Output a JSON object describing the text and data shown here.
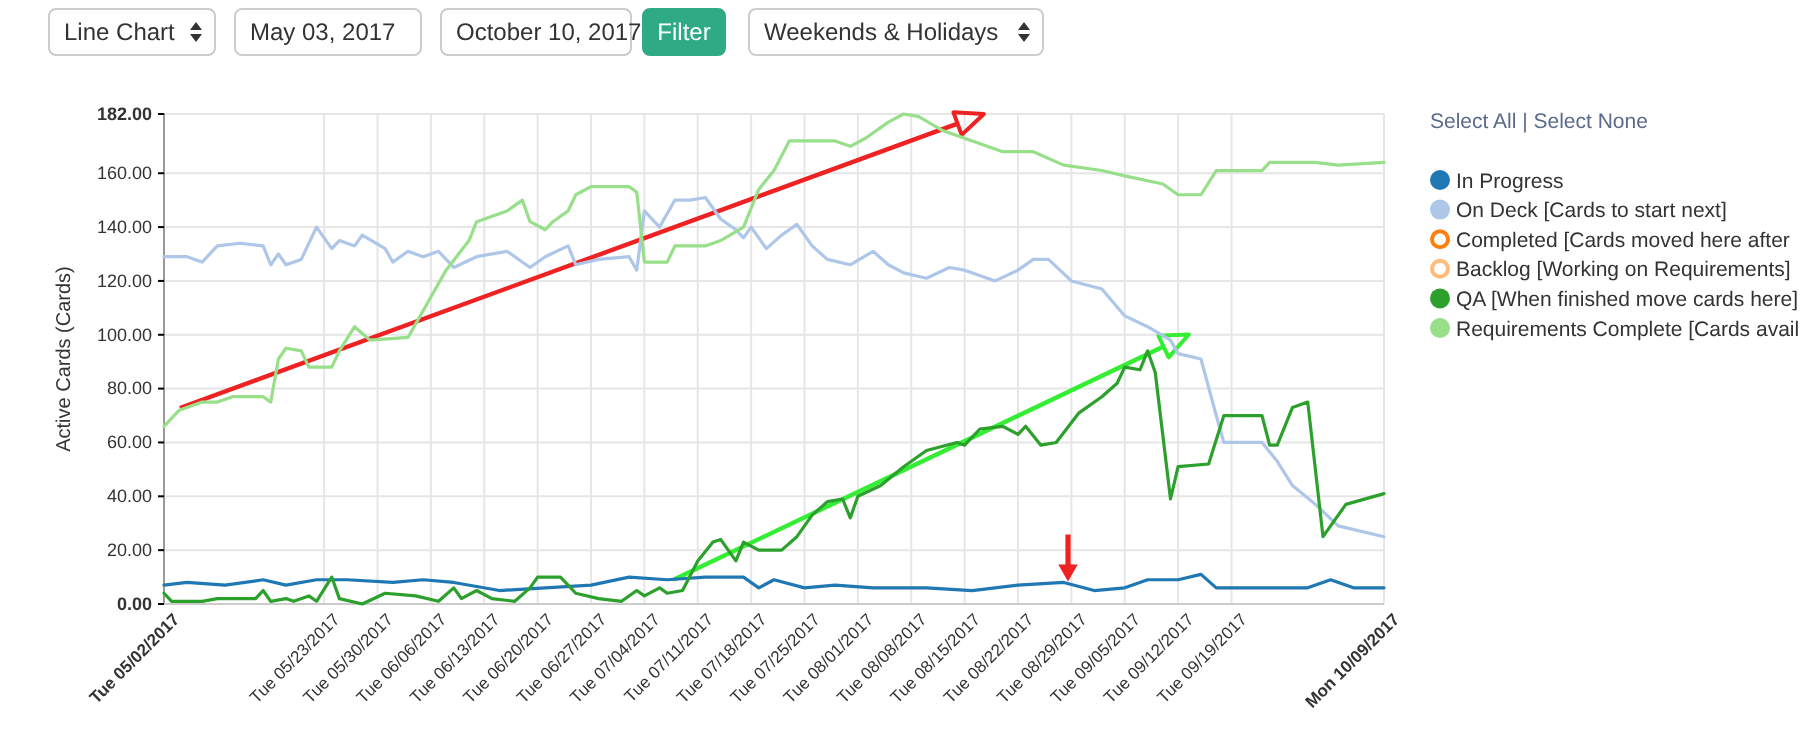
{
  "chart_data": {
    "type": "line",
    "ylabel": "Active Cards (Cards)",
    "annotations": [
      "Line Chart",
      "May 03, 2017",
      "October 10, 2017",
      "Filter",
      "Weekends & Holidays",
      "Select All | Select None"
    ],
    "xlim": [
      "2017-05-02",
      "2017-10-09"
    ],
    "xticks": [
      {
        "value": "2017-05-02",
        "label": "Tue 05/02/2017"
      },
      {
        "value": "2017-05-23",
        "label": "Tue 05/23/2017"
      },
      {
        "value": "2017-05-30",
        "label": "Tue 05/30/2017"
      },
      {
        "value": "2017-06-06",
        "label": "Tue 06/06/2017"
      },
      {
        "value": "2017-06-13",
        "label": "Tue 06/13/2017"
      },
      {
        "value": "2017-06-20",
        "label": "Tue 06/20/2017"
      },
      {
        "value": "2017-06-27",
        "label": "Tue 06/27/2017"
      },
      {
        "value": "2017-07-04",
        "label": "Tue 07/04/2017"
      },
      {
        "value": "2017-07-11",
        "label": "Tue 07/11/2017"
      },
      {
        "value": "2017-07-18",
        "label": "Tue 07/18/2017"
      },
      {
        "value": "2017-07-25",
        "label": "Tue 07/25/2017"
      },
      {
        "value": "2017-08-01",
        "label": "Tue 08/01/2017"
      },
      {
        "value": "2017-08-08",
        "label": "Tue 08/08/2017"
      },
      {
        "value": "2017-08-15",
        "label": "Tue 08/15/2017"
      },
      {
        "value": "2017-08-22",
        "label": "Tue 08/22/2017"
      },
      {
        "value": "2017-08-29",
        "label": "Tue 08/29/2017"
      },
      {
        "value": "2017-09-05",
        "label": "Tue 09/05/2017"
      },
      {
        "value": "2017-09-12",
        "label": "Tue 09/12/2017"
      },
      {
        "value": "2017-09-19",
        "label": "Tue 09/19/2017"
      },
      {
        "value": "2017-10-09",
        "label": "Mon 10/09/2017"
      }
    ],
    "ylim": [
      0,
      182
    ],
    "yticks": [
      {
        "value": 0,
        "label": "0.00"
      },
      {
        "value": 20,
        "label": "20.00"
      },
      {
        "value": 40,
        "label": "40.00"
      },
      {
        "value": 60,
        "label": "60.00"
      },
      {
        "value": 80,
        "label": "80.00"
      },
      {
        "value": 100,
        "label": "100.00"
      },
      {
        "value": 120,
        "label": "120.00"
      },
      {
        "value": 140,
        "label": "140.00"
      },
      {
        "value": 160,
        "label": "160.00"
      },
      {
        "value": 182,
        "label": "182.00"
      }
    ],
    "grid": true,
    "legend": "right",
    "line_style": "solid",
    "marker": "none",
    "series": [
      {
        "name": "In Progress",
        "color": "#1f77b4",
        "x": [
          "2017-05-02",
          "2017-05-05",
          "2017-05-10",
          "2017-05-15",
          "2017-05-18",
          "2017-05-22",
          "2017-05-26",
          "2017-06-01",
          "2017-06-05",
          "2017-06-09",
          "2017-06-15",
          "2017-06-21",
          "2017-06-27",
          "2017-07-02",
          "2017-07-07",
          "2017-07-12",
          "2017-07-17",
          "2017-07-19",
          "2017-07-21",
          "2017-07-25",
          "2017-07-29",
          "2017-08-03",
          "2017-08-10",
          "2017-08-16",
          "2017-08-22",
          "2017-08-28",
          "2017-09-01",
          "2017-09-05",
          "2017-09-08",
          "2017-09-12",
          "2017-09-15",
          "2017-09-17",
          "2017-09-23",
          "2017-09-29",
          "2017-10-02",
          "2017-10-05",
          "2017-10-09"
        ],
        "values": [
          7,
          8,
          7,
          9,
          7,
          9,
          9,
          8,
          9,
          8,
          5,
          6,
          7,
          10,
          9,
          10,
          10,
          6,
          9,
          6,
          7,
          6,
          6,
          5,
          7,
          8,
          5,
          6,
          9,
          9,
          11,
          6,
          6,
          6,
          9,
          6,
          6
        ]
      },
      {
        "name": "On Deck [Cards to start next]",
        "color": "#aec7e8",
        "x": [
          "2017-05-02",
          "2017-05-05",
          "2017-05-07",
          "2017-05-09",
          "2017-05-12",
          "2017-05-15",
          "2017-05-16",
          "2017-05-17",
          "2017-05-18",
          "2017-05-20",
          "2017-05-22",
          "2017-05-24",
          "2017-05-25",
          "2017-05-27",
          "2017-05-28",
          "2017-05-31",
          "2017-06-01",
          "2017-06-03",
          "2017-06-05",
          "2017-06-07",
          "2017-06-09",
          "2017-06-12",
          "2017-06-16",
          "2017-06-19",
          "2017-06-21",
          "2017-06-24",
          "2017-06-25",
          "2017-06-28",
          "2017-07-02",
          "2017-07-03",
          "2017-07-04",
          "2017-07-06",
          "2017-07-08",
          "2017-07-10",
          "2017-07-12",
          "2017-07-14",
          "2017-07-16",
          "2017-07-17",
          "2017-07-18",
          "2017-07-20",
          "2017-07-22",
          "2017-07-24",
          "2017-07-26",
          "2017-07-28",
          "2017-07-31",
          "2017-08-03",
          "2017-08-05",
          "2017-08-07",
          "2017-08-10",
          "2017-08-13",
          "2017-08-15",
          "2017-08-19",
          "2017-08-22",
          "2017-08-24",
          "2017-08-26",
          "2017-08-29",
          "2017-09-02",
          "2017-09-05",
          "2017-09-08",
          "2017-09-11",
          "2017-09-12",
          "2017-09-15",
          "2017-09-17",
          "2017-09-18",
          "2017-09-23",
          "2017-09-25",
          "2017-09-27",
          "2017-09-30",
          "2017-10-03",
          "2017-10-09"
        ],
        "values": [
          129,
          129,
          127,
          133,
          134,
          133,
          126,
          130,
          126,
          128,
          140,
          132,
          135,
          133,
          137,
          132,
          127,
          131,
          129,
          131,
          125,
          129,
          131,
          125,
          129,
          133,
          126,
          128,
          129,
          124,
          146,
          140,
          150,
          150,
          151,
          143,
          139,
          136,
          140,
          132,
          137,
          141,
          133,
          128,
          126,
          131,
          126,
          123,
          121,
          125,
          124,
          120,
          124,
          128,
          128,
          120,
          117,
          107,
          103,
          98,
          93,
          91,
          70,
          60,
          60,
          53,
          44,
          37,
          29,
          25
        ]
      },
      {
        "name": "Completed [Cards moved here after",
        "color": "#ff7f0e"
      },
      {
        "name": "Backlog [Working on Requirements]",
        "color": "#ffbb78"
      },
      {
        "name": "QA [When finished move cards here]",
        "color": "#2ca02c",
        "x": [
          "2017-05-02",
          "2017-05-03",
          "2017-05-07",
          "2017-05-09",
          "2017-05-14",
          "2017-05-15",
          "2017-05-16",
          "2017-05-18",
          "2017-05-19",
          "2017-05-21",
          "2017-05-22",
          "2017-05-24",
          "2017-05-25",
          "2017-05-28",
          "2017-05-31",
          "2017-06-04",
          "2017-06-07",
          "2017-06-09",
          "2017-06-10",
          "2017-06-12",
          "2017-06-14",
          "2017-06-17",
          "2017-06-19",
          "2017-06-20",
          "2017-06-23",
          "2017-06-25",
          "2017-06-28",
          "2017-07-01",
          "2017-07-03",
          "2017-07-04",
          "2017-07-06",
          "2017-07-07",
          "2017-07-09",
          "2017-07-11",
          "2017-07-13",
          "2017-07-14",
          "2017-07-16",
          "2017-07-17",
          "2017-07-19",
          "2017-07-22",
          "2017-07-24",
          "2017-07-26",
          "2017-07-28",
          "2017-07-30",
          "2017-07-31",
          "2017-08-01",
          "2017-08-04",
          "2017-08-07",
          "2017-08-10",
          "2017-08-14",
          "2017-08-15",
          "2017-08-17",
          "2017-08-20",
          "2017-08-22",
          "2017-08-23",
          "2017-08-25",
          "2017-08-27",
          "2017-08-30",
          "2017-09-02",
          "2017-09-04",
          "2017-09-05",
          "2017-09-07",
          "2017-09-08",
          "2017-09-09",
          "2017-09-11",
          "2017-09-12",
          "2017-09-16",
          "2017-09-18",
          "2017-09-23",
          "2017-09-24",
          "2017-09-25",
          "2017-09-27",
          "2017-09-29",
          "2017-10-01",
          "2017-10-04",
          "2017-10-09"
        ],
        "values": [
          4,
          1,
          1,
          2,
          2,
          5,
          1,
          2,
          1,
          3,
          1,
          10,
          2,
          0,
          4,
          3,
          1,
          6,
          2,
          5,
          2,
          1,
          6,
          10,
          10,
          4,
          2,
          1,
          5,
          3,
          6,
          4,
          5,
          16,
          23,
          24,
          16,
          23,
          20,
          20,
          25,
          33,
          38,
          39,
          32,
          40,
          44,
          51,
          57,
          60,
          59,
          65,
          66,
          63,
          66,
          59,
          60,
          71,
          77,
          82,
          88,
          87,
          94,
          86,
          39,
          51,
          52,
          70,
          70,
          59,
          59,
          73,
          75,
          25,
          37,
          41
        ]
      },
      {
        "name": "Requirements Complete [Cards avail",
        "color": "#98df8a",
        "x": [
          "2017-05-02",
          "2017-05-04",
          "2017-05-07",
          "2017-05-09",
          "2017-05-11",
          "2017-05-15",
          "2017-05-16",
          "2017-05-17",
          "2017-05-18",
          "2017-05-20",
          "2017-05-21",
          "2017-05-24",
          "2017-05-25",
          "2017-05-27",
          "2017-05-29",
          "2017-06-03",
          "2017-06-06",
          "2017-06-08",
          "2017-06-11",
          "2017-06-12",
          "2017-06-16",
          "2017-06-18",
          "2017-06-19",
          "2017-06-21",
          "2017-06-22",
          "2017-06-24",
          "2017-06-25",
          "2017-06-27",
          "2017-07-02",
          "2017-07-03",
          "2017-07-04",
          "2017-07-07",
          "2017-07-08",
          "2017-07-12",
          "2017-07-14",
          "2017-07-17",
          "2017-07-19",
          "2017-07-21",
          "2017-07-23",
          "2017-07-29",
          "2017-07-31",
          "2017-08-02",
          "2017-08-05",
          "2017-08-07",
          "2017-08-09",
          "2017-08-12",
          "2017-08-15",
          "2017-08-20",
          "2017-08-24",
          "2017-08-28",
          "2017-09-02",
          "2017-09-05",
          "2017-09-10",
          "2017-09-12",
          "2017-09-15",
          "2017-09-17",
          "2017-09-23",
          "2017-09-24",
          "2017-09-30",
          "2017-10-03",
          "2017-10-09"
        ],
        "values": [
          66,
          72,
          75,
          75,
          77,
          77,
          75,
          91,
          95,
          94,
          88,
          88,
          94,
          103,
          98,
          99,
          114,
          124,
          135,
          142,
          146,
          150,
          142,
          139,
          142,
          146,
          152,
          155,
          155,
          153,
          127,
          127,
          133,
          133,
          135,
          140,
          154,
          161,
          172,
          172,
          170,
          173,
          179,
          182,
          181,
          176,
          173,
          168,
          168,
          163,
          161,
          159,
          156,
          152,
          152,
          161,
          161,
          164,
          164,
          163,
          164
        ]
      }
    ]
  }
}
